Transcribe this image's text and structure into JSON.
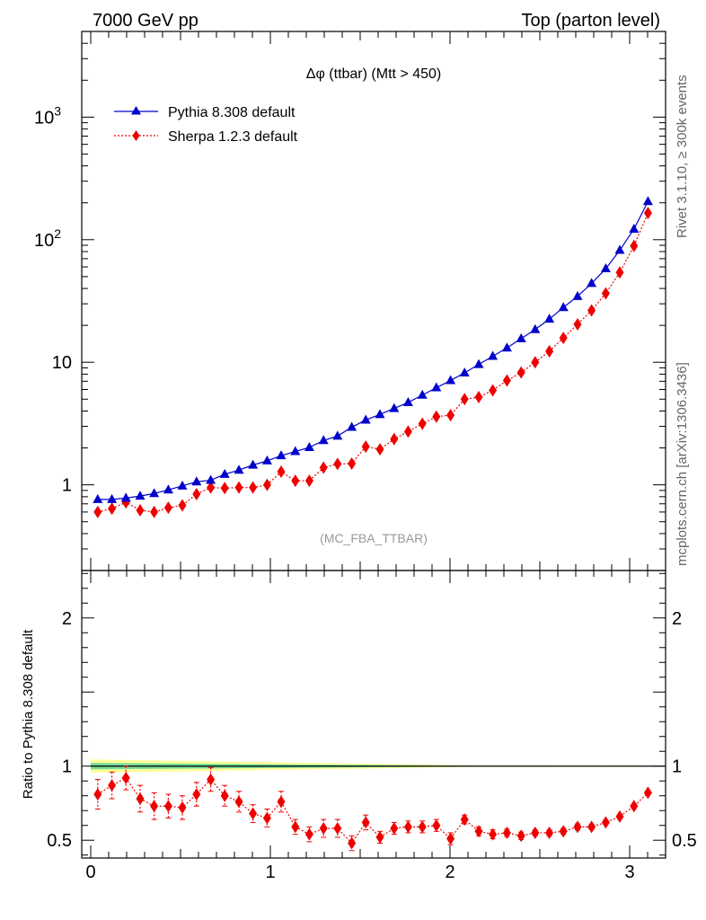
{
  "header": {
    "left": "7000 GeV pp",
    "right": "Top (parton level)"
  },
  "side_labels": {
    "rivet": "Rivet 3.1.10, ≥ 300k events",
    "mcplots": "mcplots.cern.ch [arXiv:1306.3436]"
  },
  "chart_data": [
    {
      "type": "line",
      "title": "Δφ (ttbar) (Mtt > 450)",
      "watermark": "(MC_FBA_TTBAR)",
      "yscale": "log",
      "ylim": [
        0.2,
        5000
      ],
      "xlim": [
        -0.05,
        3.2
      ],
      "y_ticks": [
        {
          "v": 1,
          "label": "1"
        },
        {
          "v": 10,
          "label": "10"
        },
        {
          "v": 100,
          "label": "10",
          "exp": "2"
        },
        {
          "v": 1000,
          "label": "10",
          "exp": "3"
        }
      ],
      "legend_position": "top-left",
      "x": [
        0.039,
        0.118,
        0.196,
        0.275,
        0.353,
        0.432,
        0.51,
        0.589,
        0.668,
        0.746,
        0.825,
        0.903,
        0.982,
        1.06,
        1.139,
        1.217,
        1.296,
        1.374,
        1.453,
        1.531,
        1.61,
        1.689,
        1.767,
        1.846,
        1.924,
        2.003,
        2.081,
        2.16,
        2.238,
        2.317,
        2.396,
        2.474,
        2.553,
        2.631,
        2.71,
        2.788,
        2.867,
        2.945,
        3.024,
        3.102
      ],
      "series": [
        {
          "name": "Pythia 8.308 default",
          "color": "#0000cc",
          "marker": "triangle",
          "line": "solid",
          "values": [
            0.76,
            0.76,
            0.78,
            0.81,
            0.85,
            0.91,
            0.98,
            1.06,
            1.09,
            1.22,
            1.32,
            1.45,
            1.57,
            1.73,
            1.87,
            2.02,
            2.3,
            2.5,
            2.95,
            3.38,
            3.75,
            4.2,
            4.7,
            5.4,
            6.2,
            7.1,
            8.2,
            9.6,
            11.2,
            13.1,
            15.6,
            18.5,
            22.5,
            28,
            34.5,
            44,
            58,
            82,
            122,
            205
          ]
        },
        {
          "name": "Sherpa 1.2.3 default",
          "color": "#ee0000",
          "marker": "diamond",
          "line": "dotted",
          "values": [
            0.6,
            0.64,
            0.72,
            0.62,
            0.6,
            0.65,
            0.68,
            0.84,
            0.95,
            0.94,
            0.95,
            0.95,
            1.0,
            1.28,
            1.08,
            1.08,
            1.38,
            1.48,
            1.49,
            2.05,
            1.95,
            2.36,
            2.72,
            3.15,
            3.6,
            3.7,
            5.0,
            5.2,
            5.9,
            7.1,
            8.25,
            10.0,
            12.3,
            15.8,
            20.4,
            26.5,
            36.5,
            54,
            89,
            165
          ]
        }
      ]
    },
    {
      "type": "line",
      "ylabel": "Ratio to Pythia 8.308 default",
      "ylim": [
        0.38,
        2.32
      ],
      "xlim": [
        -0.05,
        3.2
      ],
      "y_ticks": [
        {
          "v": 0.5,
          "label": "0.5"
        },
        {
          "v": 1,
          "label": "1"
        },
        {
          "v": 2,
          "label": "2"
        }
      ],
      "x_ticks": [
        {
          "v": 0,
          "label": "0"
        },
        {
          "v": 1,
          "label": "1"
        },
        {
          "v": 2,
          "label": "2"
        },
        {
          "v": 3,
          "label": "3"
        }
      ],
      "reference_band": {
        "color_outer": "#ffff99",
        "color_inner": "#77dd99",
        "outer_halfwidth_start": 0.045,
        "inner_halfwidth_start": 0.022,
        "x_end": 2.2
      },
      "series": [
        {
          "name": "Sherpa 1.2.3 default",
          "color": "#ee0000",
          "values": [
            0.81,
            0.87,
            0.92,
            0.78,
            0.73,
            0.73,
            0.72,
            0.81,
            0.91,
            0.8,
            0.76,
            0.68,
            0.65,
            0.76,
            0.59,
            0.54,
            0.58,
            0.58,
            0.48,
            0.62,
            0.52,
            0.58,
            0.59,
            0.59,
            0.6,
            0.51,
            0.64,
            0.56,
            0.54,
            0.55,
            0.53,
            0.55,
            0.55,
            0.56,
            0.59,
            0.59,
            0.62,
            0.66,
            0.73,
            0.82
          ],
          "errors": [
            0.1,
            0.09,
            0.08,
            0.09,
            0.09,
            0.08,
            0.08,
            0.08,
            0.08,
            0.07,
            0.07,
            0.06,
            0.06,
            0.07,
            0.05,
            0.05,
            0.06,
            0.06,
            0.05,
            0.05,
            0.04,
            0.04,
            0.04,
            0.04,
            0.04,
            0.04,
            0.03,
            0.03,
            0.03,
            0.025,
            0.025,
            0.02,
            0.02,
            0.02,
            0.02,
            0.015,
            0.015,
            0.015,
            0.015,
            0.012
          ]
        }
      ]
    }
  ]
}
